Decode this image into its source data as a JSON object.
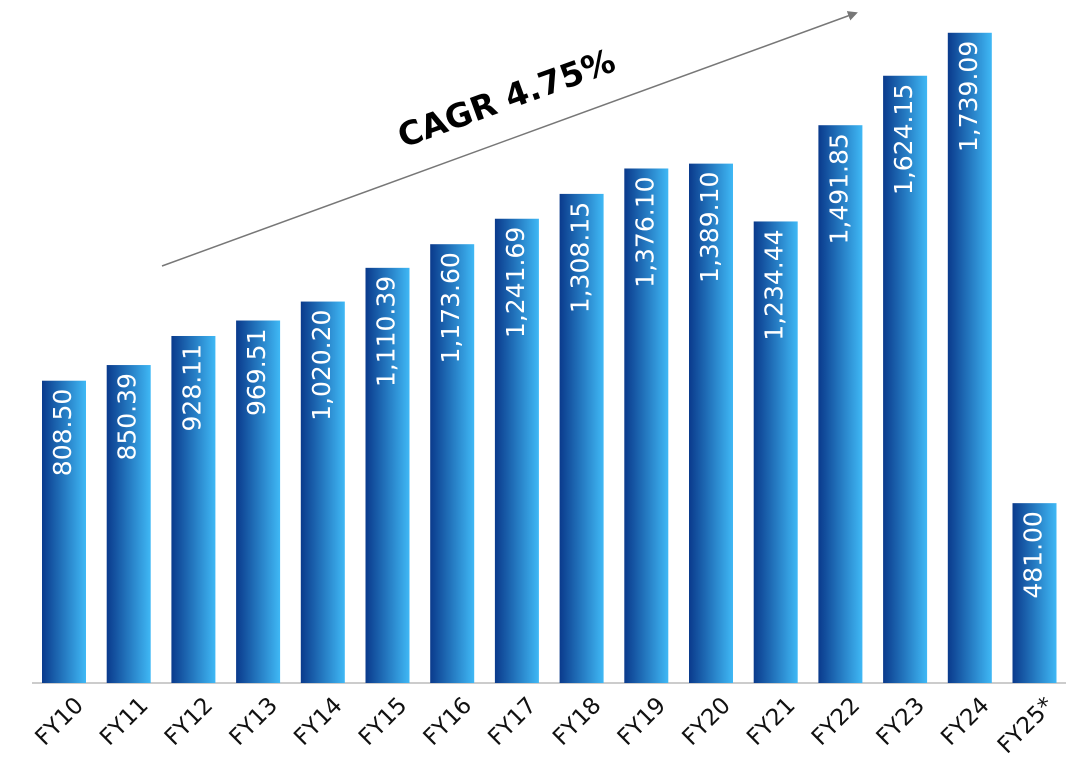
{
  "chart_data": {
    "type": "bar",
    "annotation": "CAGR 4.75%",
    "categories": [
      "FY10",
      "FY11",
      "FY12",
      "FY13",
      "FY14",
      "FY15",
      "FY16",
      "FY17",
      "FY18",
      "FY19",
      "FY20",
      "FY21",
      "FY22",
      "FY23",
      "FY24",
      "FY25*"
    ],
    "values": [
      808.5,
      850.39,
      928.11,
      969.51,
      1020.2,
      1110.39,
      1173.6,
      1241.69,
      1308.15,
      1376.1,
      1389.1,
      1234.44,
      1491.85,
      1624.15,
      1739.09,
      481
    ],
    "value_labels": [
      "808.50",
      "850.39",
      "928.11",
      "969.51",
      "1,020.20",
      "1,110.39",
      "1,173.60",
      "1,241.69",
      "1,308.15",
      "1,376.10",
      "1,389.10",
      "1,234.44",
      "1,491.85",
      "1,624.15",
      "1,739.09",
      "481.00"
    ],
    "gradient": [
      "#0a3a8c",
      "#3fb8f5"
    ],
    "ylim": [
      0,
      1800
    ]
  }
}
